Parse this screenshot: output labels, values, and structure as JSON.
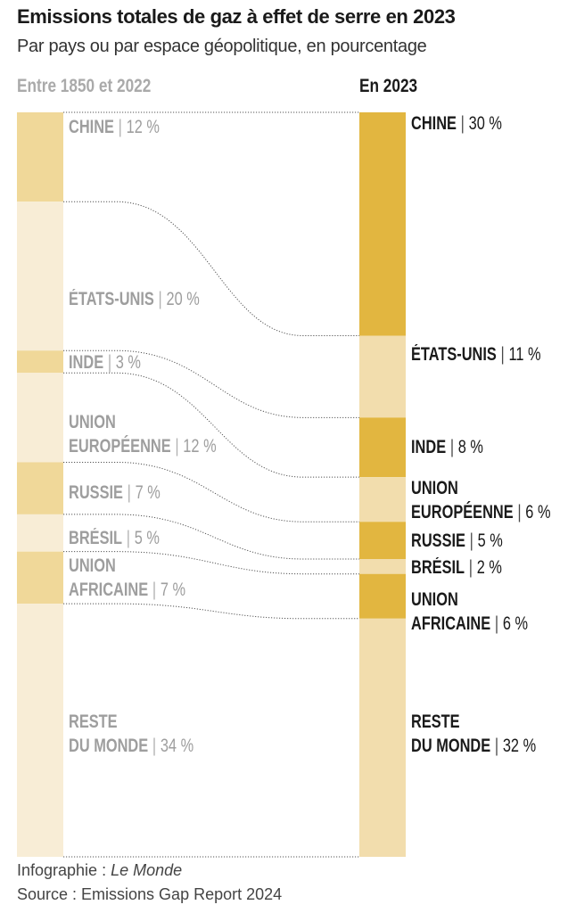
{
  "title": "Emissions totales de gaz à effet de serre en 2023",
  "subtitle": "Par pays ou par espace géopolitique, en pourcentage",
  "footer": {
    "credit_prefix": "Infographie : ",
    "credit_name": "Le Monde",
    "source": "Source : Emissions Gap Report 2024"
  },
  "colors": {
    "left_dark": "#f0d899",
    "left_light": "#f8edd6",
    "right_dark": "#e2b640",
    "right_light": "#f2ddad"
  },
  "chart_data": {
    "type": "bar",
    "subtype": "stacked-slope",
    "title": "Emissions totales de gaz à effet de serre en 2023",
    "columns": [
      "Entre 1850 et 2022",
      "En 2023"
    ],
    "unit": "%",
    "categories": [
      {
        "name": [
          "CHINE"
        ],
        "left": 12,
        "right": 30
      },
      {
        "name": [
          "ÉTATS-UNIS"
        ],
        "left": 20,
        "right": 11
      },
      {
        "name": [
          "INDE"
        ],
        "left": 3,
        "right": 8
      },
      {
        "name": [
          "UNION",
          "EUROPÉENNE"
        ],
        "left": 12,
        "right": 6
      },
      {
        "name": [
          "RUSSIE"
        ],
        "left": 7,
        "right": 5
      },
      {
        "name": [
          "BRÉSIL"
        ],
        "left": 5,
        "right": 2
      },
      {
        "name": [
          "UNION",
          "AFRICAINE"
        ],
        "left": 7,
        "right": 6
      },
      {
        "name": [
          "RESTE",
          "DU MONDE"
        ],
        "left": 34,
        "right": 32
      }
    ],
    "left_labels": [
      "12 %",
      "20 %",
      "3 %",
      "12 %",
      "7 %",
      "5 %",
      "7 %",
      "34 %"
    ],
    "right_labels": [
      "30 %",
      "11 %",
      "8 %",
      "6 %",
      "5 %",
      "2 %",
      "6 %",
      "32 %"
    ]
  }
}
